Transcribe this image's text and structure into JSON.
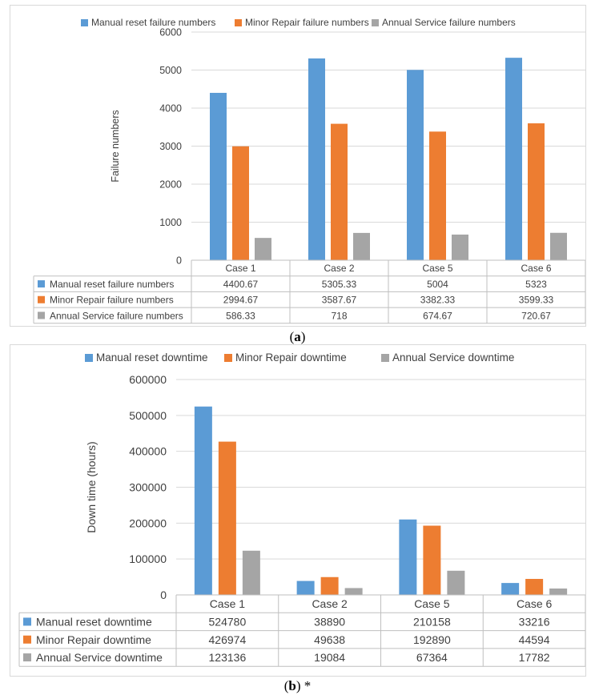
{
  "chart_data": [
    {
      "type": "bar",
      "categories": [
        "Case 1",
        "Case 2",
        "Case 5",
        "Case 6"
      ],
      "series": [
        {
          "name": "Manual reset failure numbers",
          "values": [
            4400.67,
            5305.33,
            5004,
            5323
          ],
          "labels": [
            "4400.67",
            "5305.33",
            "5004",
            "5323"
          ],
          "color": "#5b9bd5"
        },
        {
          "name": "Minor Repair failure numbers",
          "values": [
            2994.67,
            3587.67,
            3382.33,
            3599.33
          ],
          "labels": [
            "2994.67",
            "3587.67",
            "3382.33",
            "3599.33"
          ],
          "color": "#ed7d31"
        },
        {
          "name": "Annual Service failure numbers",
          "values": [
            586.33,
            718,
            674.67,
            720.67
          ],
          "labels": [
            "586.33",
            "718",
            "674.67",
            "720.67"
          ],
          "color": "#a5a5a5"
        }
      ],
      "ylabel": "Failure numbers",
      "ylim": [
        0,
        6000
      ],
      "yticks": [
        0,
        1000,
        2000,
        3000,
        4000,
        5000,
        6000
      ],
      "legend": "top",
      "grid": true,
      "data_table": true
    },
    {
      "type": "bar",
      "categories": [
        "Case 1",
        "Case 2",
        "Case 5",
        "Case 6"
      ],
      "series": [
        {
          "name": "Manual reset downtime",
          "values": [
            524780,
            38890,
            210158,
            33216
          ],
          "labels": [
            "524780",
            "38890",
            "210158",
            "33216"
          ],
          "color": "#5b9bd5"
        },
        {
          "name": "Minor Repair downtime",
          "values": [
            426974,
            49638,
            192890,
            44594
          ],
          "labels": [
            "426974",
            "49638",
            "192890",
            "44594"
          ],
          "color": "#ed7d31"
        },
        {
          "name": "Annual Service downtime",
          "values": [
            123136,
            19084,
            67364,
            17782
          ],
          "labels": [
            "123136",
            "19084",
            "67364",
            "17782"
          ],
          "color": "#a5a5a5"
        }
      ],
      "ylabel": "Down time (hours)",
      "ylim": [
        0,
        600000
      ],
      "yticks": [
        0,
        100000,
        200000,
        300000,
        400000,
        500000,
        600000
      ],
      "legend": "top",
      "grid": true,
      "data_table": true
    }
  ],
  "captions": {
    "a": {
      "open": "(",
      "letter": "a",
      "close": ")",
      "suffix": ""
    },
    "b": {
      "open": "(",
      "letter": "b",
      "close": ")",
      "suffix": " *"
    }
  }
}
